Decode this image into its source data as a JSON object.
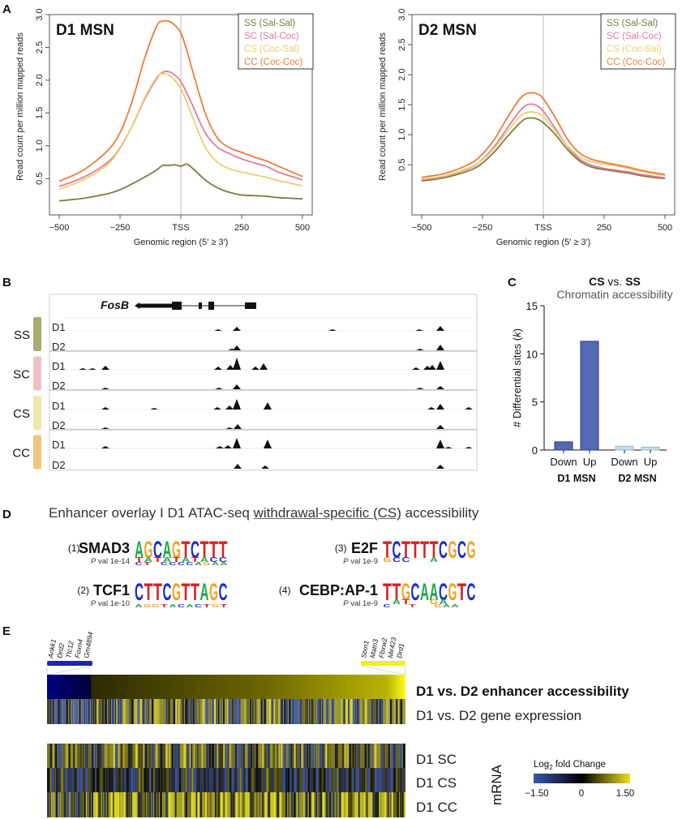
{
  "panels": {
    "A": "A",
    "B": "B",
    "C": "C",
    "D": "D",
    "E": "E"
  },
  "chart_data": [
    {
      "id": "d1-msn-profile",
      "type": "line",
      "title": "D1 MSN",
      "xlabel": "Genomic region (5′ ≥ 3′)",
      "ylabel": "Read count per million mapped reads",
      "xlim": [
        -500,
        500
      ],
      "ylim": [
        0.07,
        3.0
      ],
      "xticks": [
        -500,
        -250,
        0,
        250,
        500
      ],
      "xtick_labels": [
        "−500",
        "−250",
        "TSS",
        "250",
        "500"
      ],
      "yticks": [
        0.5,
        1.0,
        1.5,
        2.0,
        2.5,
        3.0
      ],
      "ytick_labels": [
        "0.5",
        "1.0",
        "1.5",
        "2.0",
        "2.5",
        "3.0"
      ],
      "vline_at": 0,
      "legend": "top-right",
      "x": [
        -500,
        -400,
        -300,
        -250,
        -200,
        -150,
        -100,
        -75,
        -50,
        -25,
        0,
        25,
        50,
        100,
        150,
        200,
        250,
        300,
        350,
        400,
        450,
        500
      ],
      "series": [
        {
          "name": "SS (Sal-Sal)",
          "color": "#7e7b3f",
          "values": [
            0.16,
            0.2,
            0.27,
            0.33,
            0.42,
            0.52,
            0.63,
            0.7,
            0.7,
            0.71,
            0.69,
            0.72,
            0.65,
            0.48,
            0.36,
            0.29,
            0.25,
            0.24,
            0.23,
            0.21,
            0.2,
            0.19
          ]
        },
        {
          "name": "SC (Sal-Coc)",
          "color": "#e07b9a",
          "values": [
            0.38,
            0.52,
            0.75,
            0.97,
            1.3,
            1.7,
            2.02,
            2.12,
            2.13,
            2.08,
            1.98,
            1.8,
            1.6,
            1.2,
            0.98,
            0.88,
            0.8,
            0.74,
            0.69,
            0.6,
            0.54,
            0.48
          ]
        },
        {
          "name": "CS (Coc-Sal)",
          "color": "#e9cf6e",
          "values": [
            0.34,
            0.48,
            0.72,
            0.96,
            1.3,
            1.72,
            2.04,
            2.1,
            2.08,
            2.0,
            1.87,
            1.66,
            1.42,
            0.98,
            0.75,
            0.65,
            0.6,
            0.56,
            0.52,
            0.47,
            0.43,
            0.39
          ]
        },
        {
          "name": "CC (Coc-Coc)",
          "color": "#ec7c3a",
          "values": [
            0.46,
            0.63,
            0.93,
            1.2,
            1.68,
            2.32,
            2.82,
            2.9,
            2.9,
            2.84,
            2.72,
            2.45,
            2.12,
            1.5,
            1.12,
            0.97,
            0.9,
            0.83,
            0.77,
            0.69,
            0.61,
            0.53
          ]
        }
      ]
    },
    {
      "id": "d2-msn-profile",
      "type": "line",
      "title": "D2 MSN",
      "xlabel": "Genomic region (5′  ≥  3′)",
      "ylabel": "Read count per million mapped reads",
      "xlim": [
        -500,
        500
      ],
      "ylim": [
        -0.2,
        3.0
      ],
      "xticks": [
        -500,
        -250,
        0,
        250,
        500
      ],
      "xtick_labels": [
        "−500",
        "−250",
        "TSS",
        "250",
        "500"
      ],
      "yticks": [
        0.5,
        1.0,
        1.5,
        2.0,
        2.5,
        3.0
      ],
      "ytick_labels": [
        "0.5",
        "1.0",
        "1.5",
        "2.0",
        "2.5",
        "3.0"
      ],
      "vline_at": 0,
      "legend": "top-right",
      "x": [
        -500,
        -400,
        -300,
        -250,
        -200,
        -150,
        -100,
        -75,
        -50,
        -25,
        0,
        50,
        100,
        150,
        200,
        250,
        300,
        350,
        400,
        450,
        500
      ],
      "series": [
        {
          "name": "SS (Sal-Sal)",
          "color": "#7e7b3f",
          "values": [
            0.23,
            0.29,
            0.41,
            0.53,
            0.72,
            0.96,
            1.18,
            1.26,
            1.28,
            1.26,
            1.2,
            1.0,
            0.75,
            0.56,
            0.46,
            0.42,
            0.39,
            0.36,
            0.32,
            0.29,
            0.27
          ]
        },
        {
          "name": "SC (Sal-Coc)",
          "color": "#e07b9a",
          "values": [
            0.25,
            0.31,
            0.45,
            0.59,
            0.81,
            1.1,
            1.38,
            1.48,
            1.51,
            1.48,
            1.39,
            1.1,
            0.8,
            0.59,
            0.49,
            0.44,
            0.41,
            0.38,
            0.34,
            0.31,
            0.28
          ]
        },
        {
          "name": "CS (Coc-Sal)",
          "color": "#e9cf6e",
          "values": [
            0.26,
            0.32,
            0.46,
            0.58,
            0.78,
            1.04,
            1.29,
            1.36,
            1.38,
            1.36,
            1.3,
            1.06,
            0.81,
            0.63,
            0.55,
            0.51,
            0.48,
            0.44,
            0.39,
            0.35,
            0.32
          ]
        },
        {
          "name": "CC (Coc-Coc)",
          "color": "#ec7c3a",
          "values": [
            0.29,
            0.36,
            0.52,
            0.68,
            0.93,
            1.27,
            1.58,
            1.67,
            1.7,
            1.68,
            1.6,
            1.28,
            0.92,
            0.69,
            0.59,
            0.54,
            0.5,
            0.46,
            0.41,
            0.37,
            0.34
          ]
        }
      ]
    },
    {
      "id": "cs-vs-ss-bar",
      "type": "bar",
      "title": "CS vs. SS",
      "title_parts": {
        "a": "CS",
        "vs": " vs. ",
        "b": "SS"
      },
      "subtitle": "Chromatin accessibility",
      "ylabel": "# Differential sites (k)",
      "ylabel_parts": {
        "main": "# Differential sites (",
        "ital": "k",
        "end": ")"
      },
      "ylim": [
        0,
        15
      ],
      "yticks": [
        0,
        5,
        10,
        15
      ],
      "categories": [
        "Down",
        "Up",
        "Down",
        "Up"
      ],
      "groups": [
        {
          "name": "D1 MSN",
          "color": "#5568b3"
        },
        {
          "name": "D2 MSN",
          "color": "#bfe0ec"
        }
      ],
      "series": [
        {
          "name": "D1 MSN",
          "values": [
            0.85,
            11.3
          ]
        },
        {
          "name": "D2 MSN",
          "values": [
            0.4,
            0.3
          ]
        }
      ]
    },
    {
      "id": "heatmap-e",
      "type": "heatmap",
      "rows": [
        "D1 vs. D2 enhancer accessibility",
        "D1 vs. D2 gene expression",
        "D1 SC",
        "D1 CS",
        "D1 CC"
      ],
      "row_group_label": "mRNA",
      "colorbar": {
        "title": "Log2 fold Change",
        "title_main": "Log",
        "title_sub": "2",
        "title_end": " fold Change",
        "min": -1.5,
        "max": 1.5,
        "tick_labels": [
          "−1.50",
          "0",
          "1.50"
        ],
        "colors": [
          "#3a55b0",
          "#000000",
          "#ebe21a"
        ]
      },
      "left_genes": [
        "Ankk1",
        "Drd2",
        "Ttc12",
        "Foxn4",
        "Gm4894"
      ],
      "right_genes": [
        "Stxn1",
        "Matn3",
        "Fbxw2",
        "Mir423",
        "Drd1"
      ]
    }
  ],
  "panelB": {
    "gene": "FosB",
    "groups": [
      {
        "label": "SS",
        "color": "#a9a972"
      },
      {
        "label": "SC",
        "color": "#efc1c6"
      },
      {
        "label": "CS",
        "color": "#f2e6ad"
      },
      {
        "label": "CC",
        "color": "#efc57f"
      }
    ],
    "track_labels": [
      "D1",
      "D2"
    ]
  },
  "panelD": {
    "title_pre": "Enhancer overlay I D1 ATAC-seq ",
    "title_underlined": "withdrawal-specific (CS)",
    "title_post": " accessibility",
    "motifs": [
      {
        "num": "(1)",
        "name": "SMAD3",
        "p_italic": "P",
        "p_rest": " val 1e-14",
        "top": "AGCAGTCTTT",
        "mid": "TATATATACC",
        "bot": "CTXCCCCAGAA"
      },
      {
        "num": "(2)",
        "name": "TCF1",
        "p_italic": "P",
        "p_rest": " val 1e-10",
        "top": "CTTCGTTAGC",
        "mid": "",
        "bot": "AGGTACACTGT"
      },
      {
        "num": "(3)",
        "name": "E2F",
        "p_italic": "P",
        "p_rest": " val 1e-9",
        "top": "TCTTTTCGCG",
        "mid": "GCC  A",
        "bot": ""
      },
      {
        "num": "(4)",
        "name": "CEBP:AP-1",
        "p_italic": "P",
        "p_rest": " val 1e-9",
        "top": "TTGCAACGTC",
        "mid": " AT  GA",
        "bot": "C  T  GAA"
      }
    ]
  }
}
